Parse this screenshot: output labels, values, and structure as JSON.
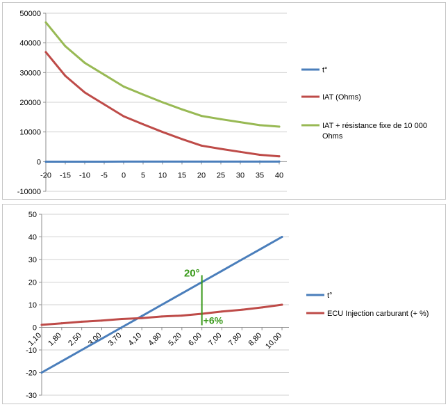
{
  "colors": {
    "blue": "#4a7ebb",
    "red": "#be4b48",
    "green": "#98b954",
    "annotation": "#3a9a1b",
    "grid": "#8c8c8c",
    "gridline": "#d0d0d0",
    "panel_border": "#c6c6c6"
  },
  "chart_data": [
    {
      "type": "line",
      "categories": [
        "-20",
        "-15",
        "-10",
        "-5",
        "0",
        "5",
        "10",
        "15",
        "20",
        "25",
        "30",
        "35",
        "40"
      ],
      "series": [
        {
          "name": "t°",
          "color": "#4a7ebb",
          "values": [
            -20,
            -15,
            -10,
            -5,
            0,
            5,
            10,
            15,
            20,
            25,
            30,
            35,
            40
          ]
        },
        {
          "name": "IAT (Ohms)",
          "color": "#be4b48",
          "values": [
            36900,
            28900,
            23300,
            19300,
            15300,
            12600,
            10000,
            7600,
            5400,
            4300,
            3300,
            2300,
            1800
          ]
        },
        {
          "name": "IAT + résistance fixe de 10 000 Ohms",
          "color": "#98b954",
          "values": [
            46900,
            38900,
            33300,
            29300,
            25300,
            22600,
            20000,
            17600,
            15400,
            14300,
            13300,
            12300,
            11800
          ]
        }
      ],
      "yticks": [
        "50000",
        "40000",
        "30000",
        "20000",
        "10000",
        "0",
        "-10000"
      ],
      "ylim": [
        -10000,
        50000
      ],
      "grid": true,
      "legend_position": "right"
    },
    {
      "type": "line",
      "categories": [
        "1,10",
        "1,80",
        "2,50",
        "3,00",
        "3,70",
        "4,10",
        "4,80",
        "5,20",
        "6,00",
        "7,00",
        "7,80",
        "8,80",
        "10,00"
      ],
      "series": [
        {
          "name": "t°",
          "color": "#4a7ebb",
          "values": [
            -20,
            -15,
            -10,
            -5,
            0,
            5,
            10,
            15,
            20,
            25,
            30,
            35,
            40
          ]
        },
        {
          "name": "ECU Injection carburant (+ %)",
          "color": "#be4b48",
          "values": [
            1.1,
            1.8,
            2.5,
            3.0,
            3.7,
            4.1,
            4.8,
            5.2,
            6.0,
            7.0,
            7.8,
            8.8,
            10.0
          ]
        }
      ],
      "yticks": [
        "50",
        "40",
        "30",
        "20",
        "10",
        "0",
        "-10",
        "-20",
        "-30"
      ],
      "ylim": [
        -30,
        50
      ],
      "grid": true,
      "legend_position": "right",
      "annotations": [
        {
          "text": "20°",
          "at_category": "6,00",
          "value": 20
        },
        {
          "text": "+6%",
          "at_category": "6,00",
          "value": 6
        }
      ]
    }
  ]
}
